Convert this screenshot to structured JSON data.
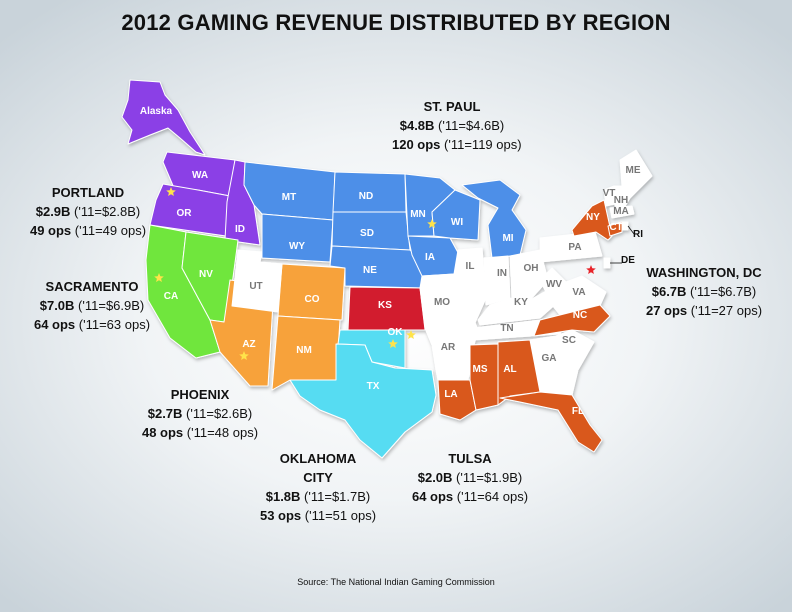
{
  "title": "2012 GAMING REVENUE DISTRIBUTED BY REGION",
  "source": "Source: The National Indian Gaming Commission",
  "colors": {
    "portland": "#8b3fe6",
    "sacramento": "#6fe63c",
    "phoenix": "#f7a23a",
    "st_paul": "#4d8fe8",
    "oklahoma_city": "#57dcf2",
    "tulsa": "#d21f2e",
    "washington_dc": "#d9581f",
    "none": "#ffffff"
  },
  "regions": [
    {
      "key": "st_paul",
      "name": "ST. PAUL",
      "revenue": "$4.8B",
      "revenue_prev": " ('11=$4.6B)",
      "ops": "120 ops",
      "ops_prev": " ('11=119 ops)"
    },
    {
      "key": "portland",
      "name": "PORTLAND",
      "revenue": "$2.9B",
      "revenue_prev": " ('11=$2.8B)",
      "ops": "49 ops",
      "ops_prev": " ('11=49 ops)"
    },
    {
      "key": "sacramento",
      "name": "SACRAMENTO",
      "revenue": "$7.0B",
      "revenue_prev": " ('11=$6.9B)",
      "ops": "64 ops",
      "ops_prev": " ('11=63 ops)"
    },
    {
      "key": "washington_dc",
      "name": "WASHINGTON, DC",
      "revenue": "$6.7B",
      "revenue_prev": " ('11=$6.7B)",
      "ops": "27 ops",
      "ops_prev": " ('11=27 ops)"
    },
    {
      "key": "phoenix",
      "name": "PHOENIX",
      "revenue": "$2.7B",
      "revenue_prev": " ('11=$2.6B)",
      "ops": "48 ops",
      "ops_prev": " ('11=48 ops)"
    },
    {
      "key": "oklahoma_city",
      "name": "OKLAHOMA CITY",
      "revenue": "$1.8B",
      "revenue_prev": " ('11=$1.7B)",
      "ops": "53 ops",
      "ops_prev": " ('11=51 ops)"
    },
    {
      "key": "tulsa",
      "name": "TULSA",
      "revenue": "$2.0B",
      "revenue_prev": " ('11=$1.9B)",
      "ops": "64 ops",
      "ops_prev": " ('11=64 ops)"
    }
  ],
  "states": [
    {
      "abbr": "Alaska",
      "region": "portland"
    },
    {
      "abbr": "WA",
      "region": "portland"
    },
    {
      "abbr": "OR",
      "region": "portland"
    },
    {
      "abbr": "ID",
      "region": "portland"
    },
    {
      "abbr": "CA",
      "region": "sacramento"
    },
    {
      "abbr": "NV",
      "region": "sacramento"
    },
    {
      "abbr": "AZ",
      "region": "phoenix"
    },
    {
      "abbr": "CO",
      "region": "phoenix"
    },
    {
      "abbr": "NM",
      "region": "phoenix"
    },
    {
      "abbr": "UT",
      "region": "none"
    },
    {
      "abbr": "MT",
      "region": "st_paul"
    },
    {
      "abbr": "WY",
      "region": "st_paul"
    },
    {
      "abbr": "ND",
      "region": "st_paul"
    },
    {
      "abbr": "SD",
      "region": "st_paul"
    },
    {
      "abbr": "NE",
      "region": "st_paul"
    },
    {
      "abbr": "MN",
      "region": "st_paul"
    },
    {
      "abbr": "IA",
      "region": "st_paul"
    },
    {
      "abbr": "WI",
      "region": "st_paul"
    },
    {
      "abbr": "MI",
      "region": "st_paul"
    },
    {
      "abbr": "KS",
      "region": "tulsa"
    },
    {
      "abbr": "OK",
      "region": "oklahoma_city"
    },
    {
      "abbr": "TX",
      "region": "oklahoma_city"
    },
    {
      "abbr": "MO",
      "region": "none"
    },
    {
      "abbr": "AR",
      "region": "none"
    },
    {
      "abbr": "IL",
      "region": "none"
    },
    {
      "abbr": "IN",
      "region": "none"
    },
    {
      "abbr": "OH",
      "region": "none"
    },
    {
      "abbr": "KY",
      "region": "none"
    },
    {
      "abbr": "TN",
      "region": "none"
    },
    {
      "abbr": "WV",
      "region": "none"
    },
    {
      "abbr": "VA",
      "region": "none"
    },
    {
      "abbr": "PA",
      "region": "none"
    },
    {
      "abbr": "GA",
      "region": "none"
    },
    {
      "abbr": "SC",
      "region": "none"
    },
    {
      "abbr": "LA",
      "region": "washington_dc"
    },
    {
      "abbr": "MS",
      "region": "washington_dc"
    },
    {
      "abbr": "AL",
      "region": "washington_dc"
    },
    {
      "abbr": "FL",
      "region": "washington_dc"
    },
    {
      "abbr": "NC",
      "region": "washington_dc"
    },
    {
      "abbr": "NY",
      "region": "washington_dc"
    },
    {
      "abbr": "CT",
      "region": "washington_dc"
    },
    {
      "abbr": "ME",
      "region": "none"
    },
    {
      "abbr": "VT",
      "region": "none"
    },
    {
      "abbr": "NH",
      "region": "none"
    },
    {
      "abbr": "MA",
      "region": "none"
    },
    {
      "abbr": "RI",
      "region": "none"
    },
    {
      "abbr": "DE",
      "region": "none"
    }
  ]
}
